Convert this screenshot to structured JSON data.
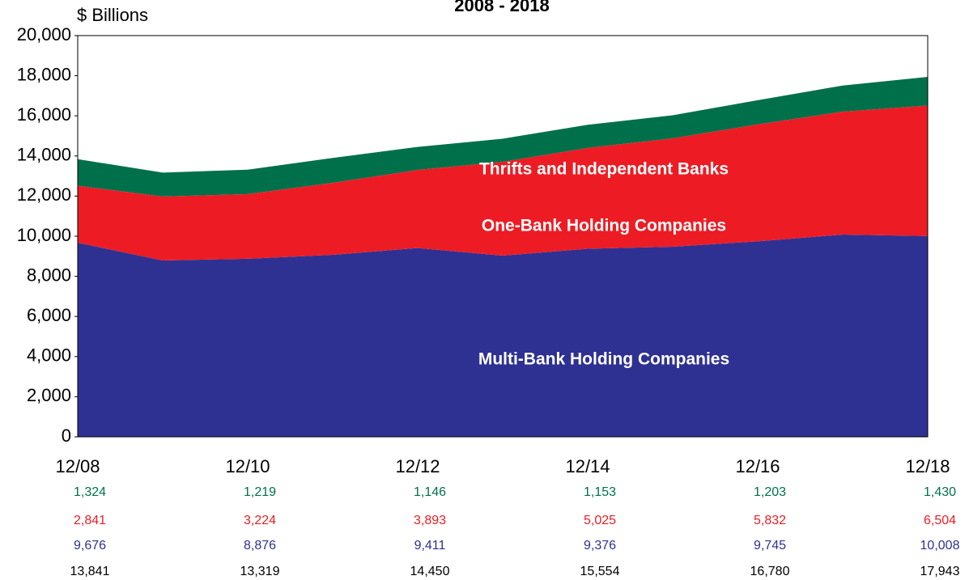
{
  "chart_data": {
    "type": "stacked_area",
    "title": "2008 - 2018",
    "y_axis_label": "$ Billions",
    "categories": [
      "12/08",
      null,
      "12/10",
      null,
      "12/12",
      null,
      "12/14",
      null,
      "12/16",
      null,
      "12/18"
    ],
    "ylim": [
      0,
      20000
    ],
    "yticks": [
      0,
      {
        "value": 2000,
        "label": "2,000"
      },
      {
        "value": 4000,
        "label": "4,000"
      },
      {
        "value": 6000,
        "label": "6,000"
      },
      {
        "value": 8000,
        "label": "8,000"
      },
      {
        "value": 10000,
        "label": "10,000"
      },
      {
        "value": 12000,
        "label": "12,000"
      },
      {
        "value": 14000,
        "label": "14,000"
      },
      {
        "value": 16000,
        "label": "16,000"
      },
      {
        "value": 18000,
        "label": "18,000"
      },
      {
        "value": 20000,
        "label": "20,000"
      }
    ],
    "series": [
      {
        "name": "Multi-Bank Holding Companies",
        "color": "#2e3192",
        "values": [
          9676,
          8790,
          8876,
          9073,
          9411,
          9032,
          9376,
          9476,
          9745,
          10080,
          10008
        ],
        "value_labels": [
          "9,676",
          null,
          "8,876",
          null,
          "9,411",
          null,
          "9,376",
          null,
          "9,745",
          null,
          "10,008"
        ]
      },
      {
        "name": "One-Bank Holding Companies",
        "color": "#ed1c24",
        "values": [
          2841,
          3190,
          3224,
          3588,
          3893,
          4678,
          5025,
          5403,
          5832,
          6130,
          6504
        ],
        "value_labels": [
          "2,841",
          null,
          "3,224",
          null,
          "3,893",
          null,
          "5,025",
          null,
          "5,832",
          null,
          "6,504"
        ]
      },
      {
        "name": "Thrifts and Independent Banks",
        "color": "#00704a",
        "values": [
          1324,
          1190,
          1219,
          1240,
          1146,
          1150,
          1153,
          1150,
          1203,
          1300,
          1430
        ],
        "value_labels": [
          "1,324",
          null,
          "1,219",
          null,
          "1,146",
          null,
          "1,153",
          null,
          "1,203",
          null,
          "1,430"
        ]
      }
    ],
    "total_labels": [
      "13,841",
      null,
      "13,319",
      null,
      "14,450",
      null,
      "15,554",
      null,
      "16,780",
      null,
      "17,943"
    ]
  }
}
